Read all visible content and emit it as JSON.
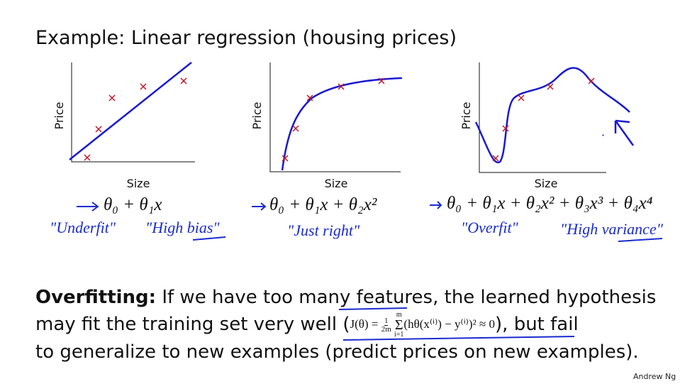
{
  "header": {
    "title": "Example: Linear regression (housing prices)"
  },
  "plots": [
    {
      "y_label": "Price",
      "x_label": "Size",
      "equation": "θ₀ + θ₁x",
      "notes": [
        "\"Underfit\"",
        "\"High bias\""
      ]
    },
    {
      "y_label": "Price",
      "x_label": "Size",
      "equation": "θ₀ + θ₁x + θ₂x²",
      "notes": [
        "\"Just right\""
      ]
    },
    {
      "y_label": "Price",
      "x_label": "Size",
      "equation": "θ₀ + θ₁x + θ₂x² + θ₃x³ + θ₄x⁴",
      "notes": [
        "\"Overfit\"",
        "\"High variance\""
      ]
    }
  ],
  "paragraph": {
    "term": "Overfitting:",
    "line1": "If we have too many features, the learned hypothesis",
    "line2a": "may fit the training set very well (",
    "formula": {
      "lhs": "J(θ) =",
      "num": "1",
      "den": "2m",
      "sum": "Σ",
      "sum_top": "m",
      "sum_bottom": "i=1",
      "rest": "(hθ(x⁽ⁱ⁾) − y⁽ⁱ⁾)² ≈ 0"
    },
    "line2b": "), but fail",
    "line3": "to generalize to new examples (predict prices on new examples)."
  },
  "footer": {
    "author": "Andrew Ng"
  }
}
